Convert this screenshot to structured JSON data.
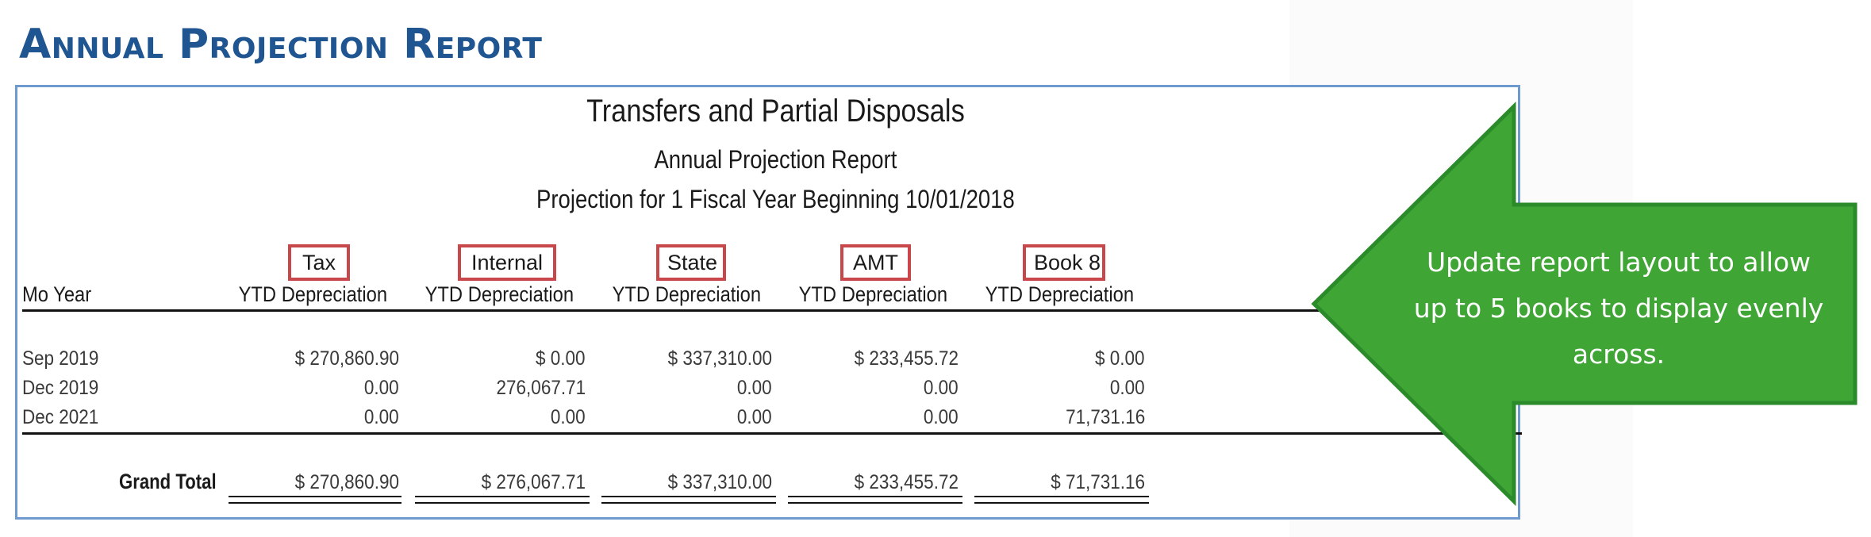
{
  "heading": "Annual Projection Report",
  "report": {
    "title": "Transfers and Partial Disposals",
    "subtitle": "Annual Projection Report",
    "projection_line": "Projection for 1 Fiscal Year Beginning 10/01/2018",
    "row_header": "Mo Year",
    "column_subheader": "YTD Depreciation",
    "books": [
      "Tax",
      "Internal",
      "State",
      "AMT",
      "Book 8"
    ],
    "rows": [
      {
        "period": "Sep 2019",
        "values": [
          "$ 270,860.90",
          "$ 0.00",
          "$ 337,310.00",
          "$ 233,455.72",
          "$ 0.00"
        ]
      },
      {
        "period": "Dec 2019",
        "values": [
          "0.00",
          "276,067.71",
          "0.00",
          "0.00",
          "0.00"
        ]
      },
      {
        "period": "Dec 2021",
        "values": [
          "0.00",
          "0.00",
          "0.00",
          "0.00",
          "71,731.16"
        ]
      }
    ],
    "grand_total": {
      "label": "Grand Total",
      "values": [
        "$ 270,860.90",
        "$ 276,067.71",
        "$ 337,310.00",
        "$ 233,455.72",
        "$ 71,731.16"
      ]
    }
  },
  "callout": {
    "text": "Update report layout to allow up to 5 books to display evenly across.",
    "color": "#3fa535",
    "border_color": "#2b8a2a"
  },
  "colors": {
    "heading": "#1f5591",
    "frame_border": "#6f9ad0",
    "book_box_border": "#c8474a"
  }
}
